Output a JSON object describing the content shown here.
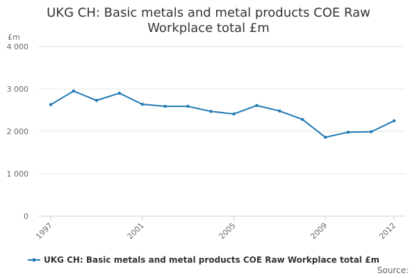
{
  "colors": {
    "series": "#1f78b4",
    "grid": "#e6e6e6",
    "text": "#333333",
    "muted": "#666666"
  },
  "chart_data": {
    "type": "line",
    "title_lines": [
      "UKG CH: Basic metals and metal products COE Raw",
      "Workplace total £m"
    ],
    "unit_label": "£m",
    "ylim": [
      0,
      4000
    ],
    "y_ticks": [
      {
        "value": 0,
        "label": "0"
      },
      {
        "value": 1000,
        "label": "1 000"
      },
      {
        "value": 2000,
        "label": "2 000"
      },
      {
        "value": 3000,
        "label": "3 000"
      },
      {
        "value": 4000,
        "label": "4 000"
      }
    ],
    "xlim": [
      1997,
      2012
    ],
    "x_tick_labels": [
      "1997",
      "2001",
      "2005",
      "2009",
      "2012"
    ],
    "x": [
      1997,
      1998,
      1999,
      2000,
      2001,
      2002,
      2003,
      2004,
      2005,
      2006,
      2007,
      2008,
      2009,
      2010,
      2011,
      2012
    ],
    "series": [
      {
        "name": "UKG CH: Basic metals and metal products COE Raw Workplace total £m",
        "values": [
          2630,
          2950,
          2730,
          2900,
          2640,
          2590,
          2590,
          2470,
          2410,
          2610,
          2480,
          2280,
          1860,
          1980,
          1990,
          2250
        ]
      }
    ],
    "grid": true,
    "legend_position": "bottom"
  },
  "source_label": "Source:"
}
